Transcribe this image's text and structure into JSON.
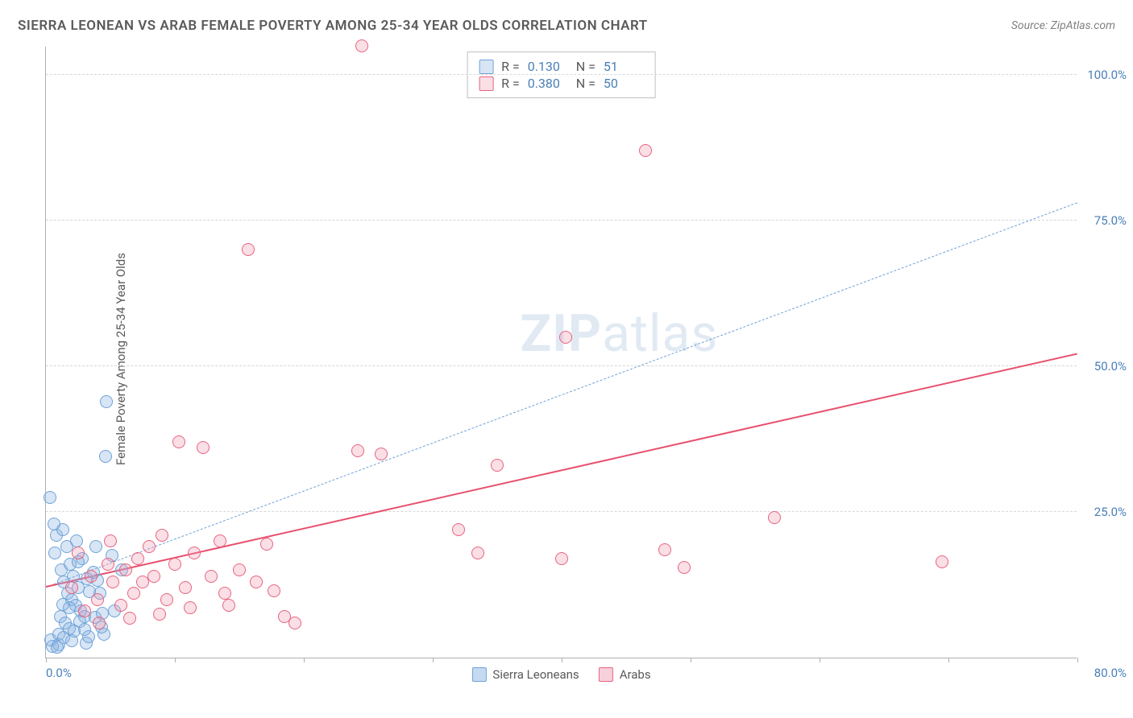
{
  "title": "SIERRA LEONEAN VS ARAB FEMALE POVERTY AMONG 25-34 YEAR OLDS CORRELATION CHART",
  "source": "Source: ZipAtlas.com",
  "ylabel": "Female Poverty Among 25-34 Year Olds",
  "watermark_bold": "ZIP",
  "watermark_rest": "atlas",
  "chart": {
    "type": "scatter",
    "xlim": [
      0,
      80
    ],
    "ylim": [
      0,
      105
    ],
    "background_color": "#ffffff",
    "grid_color": "#d8d8d8",
    "axis_color": "#b0b0b0",
    "xticks": [
      0,
      10,
      20,
      30,
      40,
      50,
      60,
      70,
      80
    ],
    "yticks": [
      25,
      50,
      75,
      100
    ],
    "ytick_labels": [
      "25.0%",
      "50.0%",
      "75.0%",
      "100.0%"
    ],
    "xtick_label_left": "0.0%",
    "xtick_label_right": "80.0%",
    "label_color": "#4a7fb8",
    "label_fontsize": 15,
    "marker_radius": 8,
    "marker_stroke_width": 1.5,
    "series": [
      {
        "name": "Sierra Leoneans",
        "key": "sierra_leoneans",
        "fill_color": "rgba(140,180,225,0.35)",
        "stroke_color": "#6fa3d8",
        "trend_solid": false,
        "trend_dash": "6,5",
        "trend_color": "#6fa3d8",
        "trend_width": 1.5,
        "trend_start": [
          0,
          12
        ],
        "trend_end": [
          80,
          78
        ],
        "R": "0.130",
        "N": "51",
        "points": [
          [
            0.3,
            27.5
          ],
          [
            0.5,
            2
          ],
          [
            0.6,
            23
          ],
          [
            0.7,
            18
          ],
          [
            0.8,
            21
          ],
          [
            0.4,
            3
          ],
          [
            1,
            4
          ],
          [
            1.1,
            7
          ],
          [
            1.2,
            15
          ],
          [
            1.3,
            22
          ],
          [
            1.4,
            13
          ],
          [
            1.5,
            6
          ],
          [
            1.6,
            19
          ],
          [
            1.7,
            11
          ],
          [
            1.8,
            5
          ],
          [
            1.9,
            16
          ],
          [
            2,
            10
          ],
          [
            2.1,
            14
          ],
          [
            2.3,
            9
          ],
          [
            2.4,
            20
          ],
          [
            2.5,
            12
          ],
          [
            2.7,
            8
          ],
          [
            2.8,
            17
          ],
          [
            3,
            7
          ],
          [
            3.1,
            2.5
          ],
          [
            3.2,
            13.5
          ],
          [
            3.9,
            19
          ],
          [
            4.2,
            11
          ],
          [
            4.5,
            4
          ],
          [
            4.6,
            34.5
          ],
          [
            4.7,
            44
          ],
          [
            5.1,
            17.5
          ],
          [
            5.3,
            8
          ],
          [
            5.9,
            15
          ],
          [
            1.0,
            2.2
          ],
          [
            1.4,
            3.4
          ],
          [
            1.8,
            8.5
          ],
          [
            2.2,
            4.6
          ],
          [
            2.6,
            6.2
          ],
          [
            3.0,
            4.8
          ],
          [
            3.4,
            11.3
          ],
          [
            3.8,
            6.9
          ],
          [
            4.0,
            13.2
          ],
          [
            4.4,
            7.6
          ],
          [
            0.9,
            1.8
          ],
          [
            1.3,
            9.1
          ],
          [
            2.0,
            2.9
          ],
          [
            2.5,
            16.4
          ],
          [
            3.3,
            3.6
          ],
          [
            3.7,
            14.7
          ],
          [
            4.3,
            5.3
          ]
        ]
      },
      {
        "name": "Arabs",
        "key": "arabs",
        "fill_color": "rgba(240,150,175,0.30)",
        "stroke_color": "#e8647e",
        "trend_solid": true,
        "trend_color": "#e8506e",
        "trend_width": 2.5,
        "trend_start": [
          0,
          12
        ],
        "trend_end": [
          80,
          52
        ],
        "R": "0.380",
        "N": "50",
        "points": [
          [
            2,
            12
          ],
          [
            2.5,
            18
          ],
          [
            3,
            8
          ],
          [
            3.5,
            14
          ],
          [
            4,
            10
          ],
          [
            4.8,
            16
          ],
          [
            5,
            20
          ],
          [
            5.2,
            13
          ],
          [
            5.8,
            9
          ],
          [
            6.2,
            15
          ],
          [
            6.8,
            11
          ],
          [
            7.1,
            17
          ],
          [
            7.5,
            13
          ],
          [
            8,
            19
          ],
          [
            8.4,
            14
          ],
          [
            9,
            21
          ],
          [
            9.4,
            10
          ],
          [
            10,
            16
          ],
          [
            10.3,
            37
          ],
          [
            10.8,
            12
          ],
          [
            11.5,
            18
          ],
          [
            12.2,
            36
          ],
          [
            12.8,
            14
          ],
          [
            13.5,
            20
          ],
          [
            14.2,
            9
          ],
          [
            15,
            15
          ],
          [
            15.7,
            70
          ],
          [
            16.3,
            13
          ],
          [
            17.1,
            19.5
          ],
          [
            17.7,
            11.5
          ],
          [
            18.5,
            7
          ],
          [
            19.3,
            6
          ],
          [
            24.2,
            35.5
          ],
          [
            24.5,
            105
          ],
          [
            26,
            35
          ],
          [
            32,
            22
          ],
          [
            33.5,
            18
          ],
          [
            35,
            33
          ],
          [
            40,
            17
          ],
          [
            40.3,
            55
          ],
          [
            46.5,
            87
          ],
          [
            48,
            18.5
          ],
          [
            49.5,
            15.5
          ],
          [
            56.5,
            24
          ],
          [
            69.5,
            16.5
          ],
          [
            4.1,
            6
          ],
          [
            6.5,
            6.8
          ],
          [
            8.8,
            7.4
          ],
          [
            11.2,
            8.6
          ],
          [
            13.9,
            11
          ]
        ]
      }
    ]
  },
  "legend_bottom": [
    {
      "label": "Sierra Leoneans",
      "fill": "rgba(140,180,225,0.5)",
      "stroke": "#6fa3d8"
    },
    {
      "label": "Arabs",
      "fill": "rgba(240,150,175,0.45)",
      "stroke": "#e8647e"
    }
  ]
}
